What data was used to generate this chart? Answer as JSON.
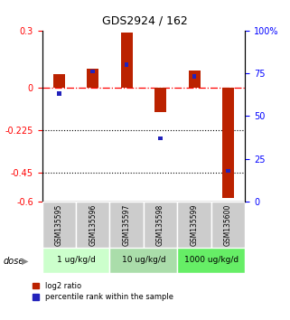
{
  "title": "GDS2924 / 162",
  "samples": [
    "GSM135595",
    "GSM135596",
    "GSM135597",
    "GSM135598",
    "GSM135599",
    "GSM135600"
  ],
  "log2_ratio": [
    0.07,
    0.1,
    0.29,
    -0.13,
    0.09,
    -0.58
  ],
  "percentile_rank": [
    63,
    76,
    80,
    37,
    73,
    18
  ],
  "ylim_left": [
    -0.6,
    0.3
  ],
  "ylim_right": [
    0,
    100
  ],
  "yticks_left": [
    0.3,
    0,
    -0.225,
    -0.45,
    -0.6
  ],
  "yticks_right": [
    100,
    75,
    50,
    25,
    0
  ],
  "hlines_dotted": [
    -0.225,
    -0.45
  ],
  "hline_dashdot": 0,
  "bar_color_red": "#bb2200",
  "bar_color_blue": "#2222bb",
  "sample_area_color": "#cccccc",
  "dose_groups": [
    {
      "start": 0,
      "end": 1,
      "label": "1 ug/kg/d",
      "color": "#ccffcc"
    },
    {
      "start": 2,
      "end": 3,
      "label": "10 ug/kg/d",
      "color": "#aaddaa"
    },
    {
      "start": 4,
      "end": 5,
      "label": "1000 ug/kg/d",
      "color": "#66ee66"
    }
  ],
  "legend_red": "log2 ratio",
  "legend_blue": "percentile rank within the sample"
}
